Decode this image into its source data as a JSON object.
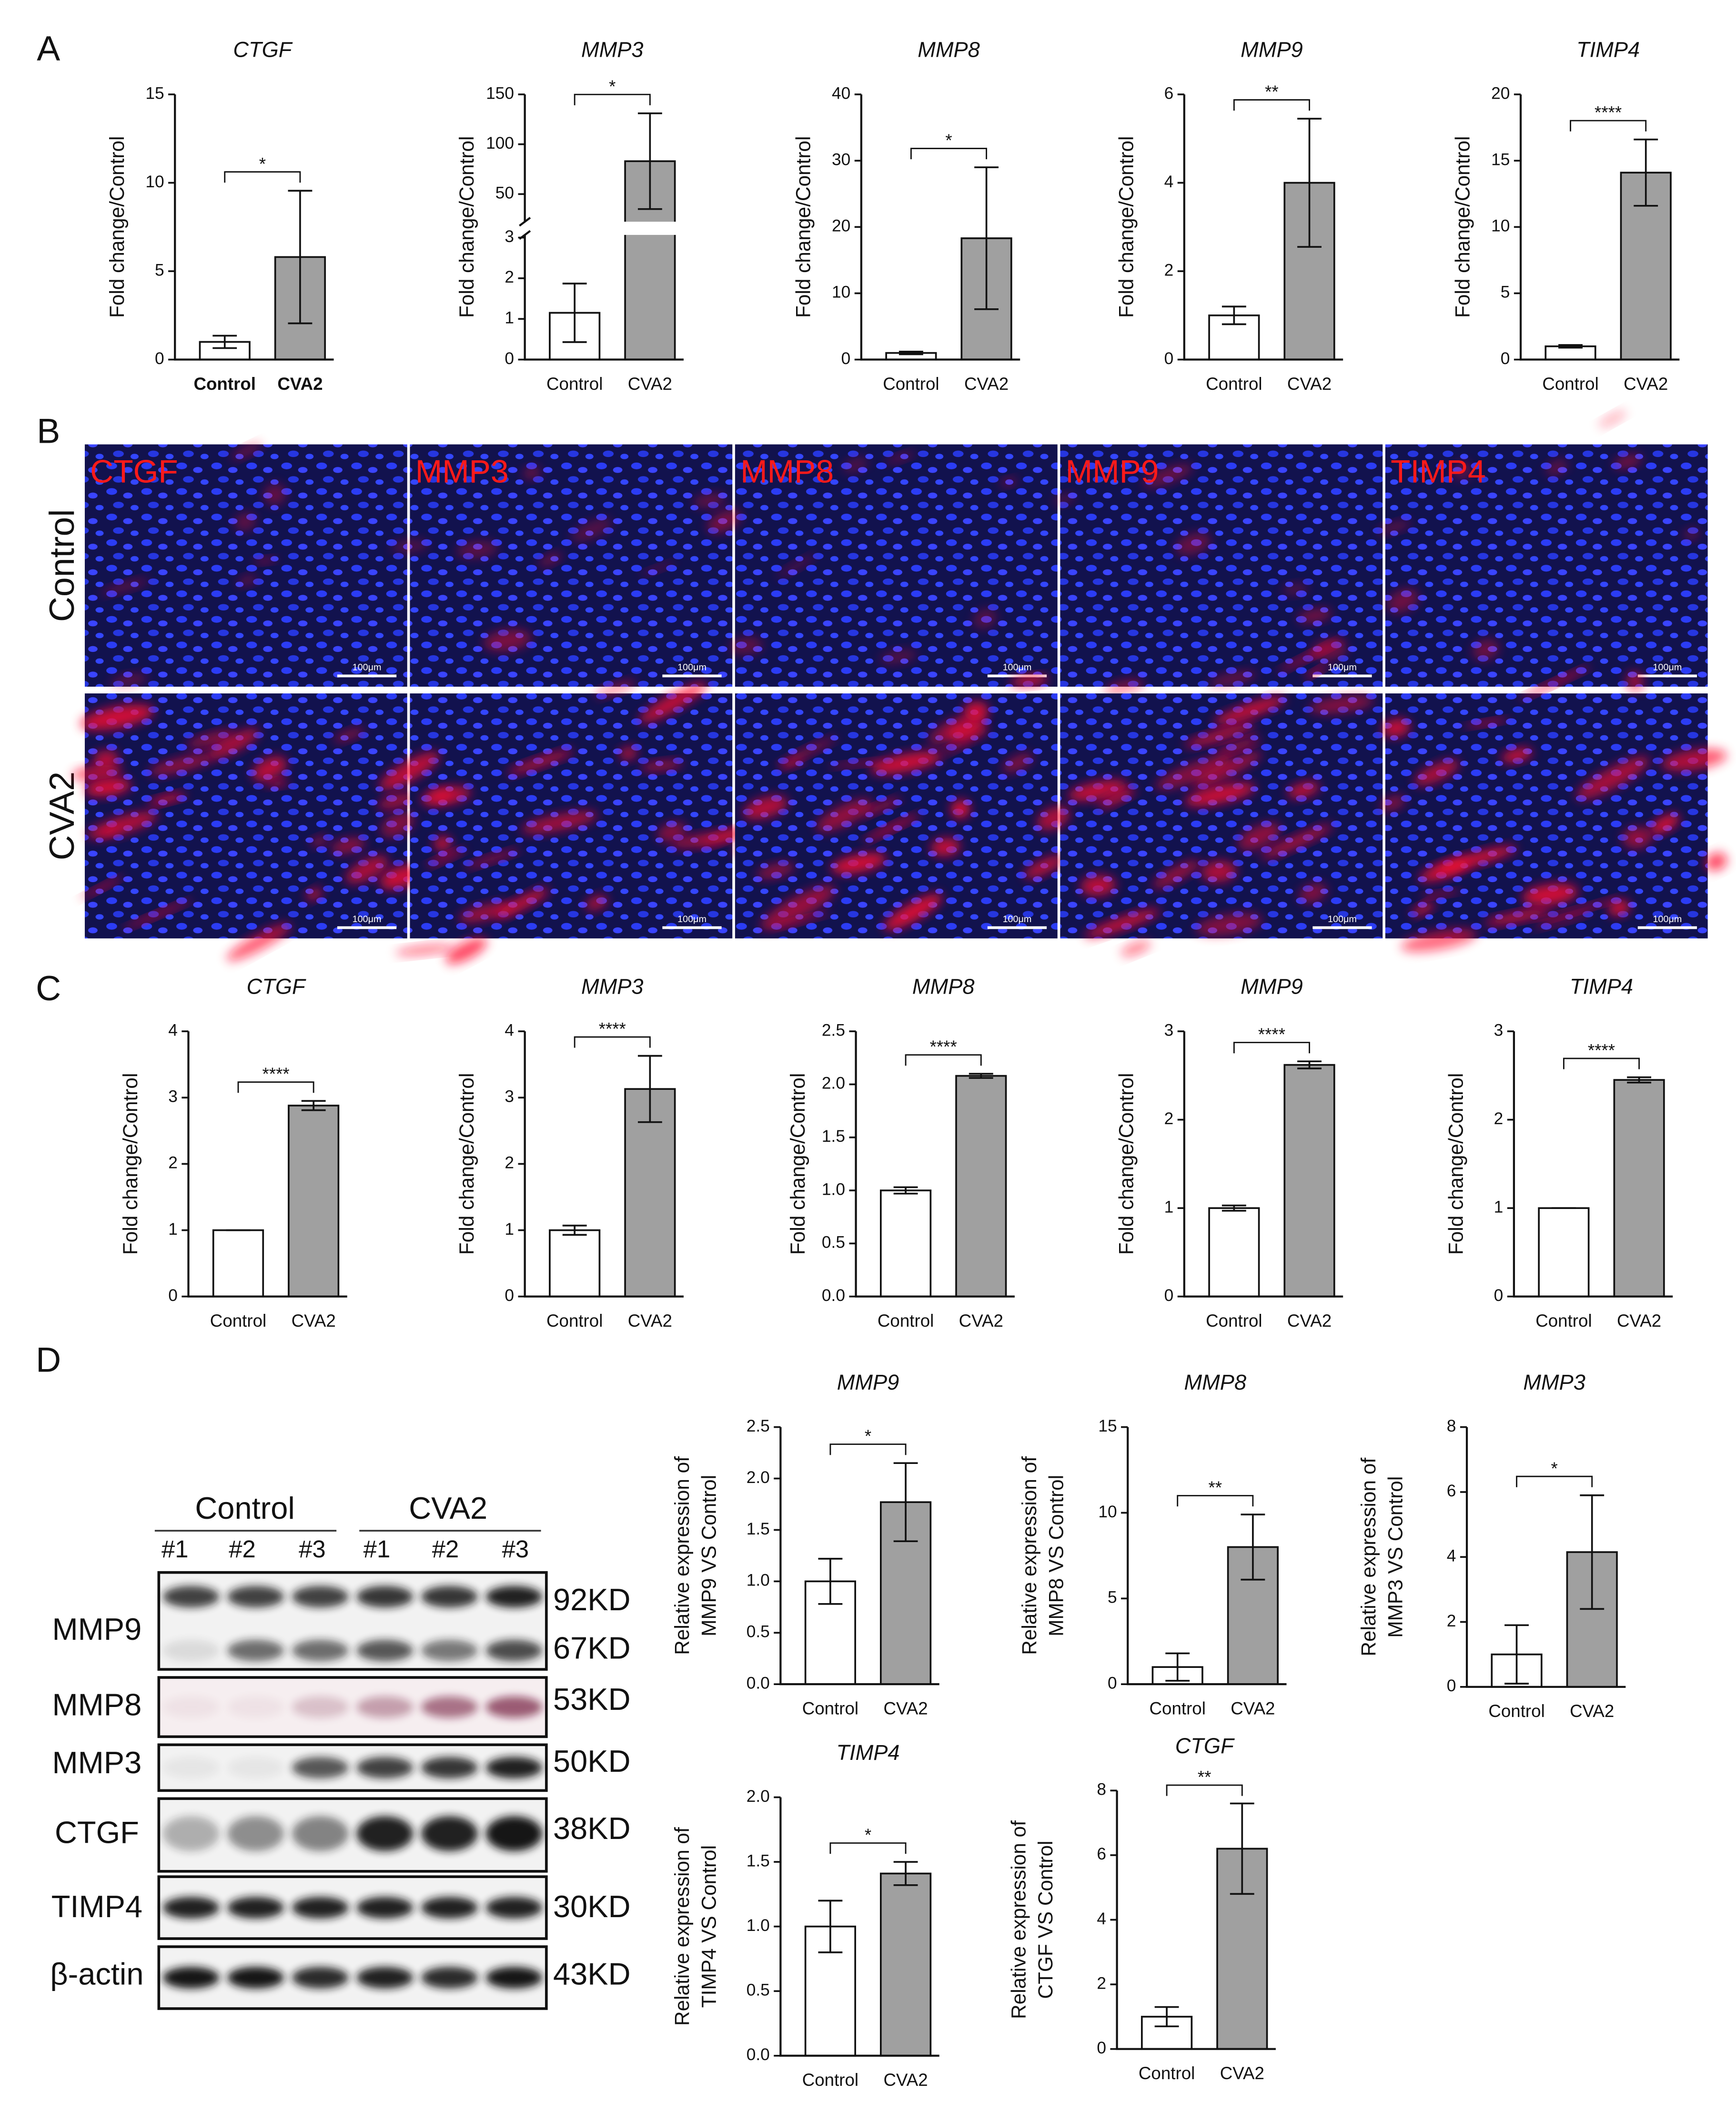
{
  "panel_labels": [
    "A",
    "B",
    "C",
    "D"
  ],
  "chart_data": [
    {
      "type": "bar",
      "title": "CTGF",
      "ylabel": "Fold change/Control",
      "categories": [
        "Control",
        "CVA2"
      ],
      "colors": [
        "#ffffff",
        "#a0a0a0"
      ],
      "values": [
        1,
        5.8
      ],
      "errors": [
        0.35,
        3.75
      ],
      "ylim": [
        0,
        15
      ],
      "yticks": [
        0,
        5,
        10,
        15
      ],
      "significance": "*"
    },
    {
      "type": "bar",
      "title": "MMP3",
      "ylabel": "Fold change/Control",
      "categories": [
        "Control",
        "CVA2"
      ],
      "colors": [
        "#ffffff",
        "#a0a0a0"
      ],
      "values": [
        1.15,
        83
      ],
      "errors": [
        0.72,
        48
      ],
      "ylim": [
        0,
        150
      ],
      "yticks": [
        0,
        1,
        2,
        3,
        50,
        100,
        150
      ],
      "ybreak": [
        3,
        25
      ],
      "significance": "*"
    },
    {
      "type": "bar",
      "title": "MMP8",
      "ylabel": "Fold change/Control",
      "categories": [
        "Control",
        "CVA2"
      ],
      "colors": [
        "#ffffff",
        "#a0a0a0"
      ],
      "values": [
        1,
        18.3
      ],
      "errors": [
        0.2,
        10.7
      ],
      "ylim": [
        0,
        40
      ],
      "yticks": [
        0,
        10,
        20,
        30,
        40
      ],
      "significance": "*"
    },
    {
      "type": "bar",
      "title": "MMP9",
      "ylabel": "Fold change/Control",
      "categories": [
        "Control",
        "CVA2"
      ],
      "colors": [
        "#ffffff",
        "#a0a0a0"
      ],
      "values": [
        1,
        4
      ],
      "errors": [
        0.2,
        1.45
      ],
      "ylim": [
        0,
        6
      ],
      "yticks": [
        0,
        2,
        4,
        6
      ],
      "significance": "**"
    },
    {
      "type": "bar",
      "title": "TIMP4",
      "ylabel": "Fold change/Control",
      "categories": [
        "Control",
        "CVA2"
      ],
      "colors": [
        "#ffffff",
        "#a0a0a0"
      ],
      "values": [
        1,
        14.1
      ],
      "errors": [
        0.1,
        2.5
      ],
      "ylim": [
        0,
        20
      ],
      "yticks": [
        0,
        5,
        10,
        15,
        20
      ],
      "significance": "****"
    },
    {
      "type": "bar",
      "title": "CTGF",
      "ylabel": "Fold change/Control",
      "categories": [
        "Control",
        "CVA2"
      ],
      "colors": [
        "#ffffff",
        "#a0a0a0"
      ],
      "values": [
        1,
        2.88
      ],
      "errors": [
        0,
        0.07
      ],
      "ylim": [
        0,
        4
      ],
      "yticks": [
        0,
        1,
        2,
        3,
        4
      ],
      "significance": "****"
    },
    {
      "type": "bar",
      "title": "MMP3",
      "ylabel": "Fold change/Control",
      "categories": [
        "Control",
        "CVA2"
      ],
      "colors": [
        "#ffffff",
        "#a0a0a0"
      ],
      "values": [
        1,
        3.13
      ],
      "errors": [
        0.07,
        0.5
      ],
      "ylim": [
        0,
        4
      ],
      "yticks": [
        0,
        1,
        2,
        3,
        4
      ],
      "significance": "****"
    },
    {
      "type": "bar",
      "title": "MMP8",
      "ylabel": "Fold change/Control",
      "categories": [
        "Control",
        "CVA2"
      ],
      "colors": [
        "#ffffff",
        "#a0a0a0"
      ],
      "values": [
        1,
        2.08
      ],
      "errors": [
        0.03,
        0.02
      ],
      "ylim": [
        0,
        2.5
      ],
      "yticks": [
        {
          "value": 0,
          "label": "0.0"
        },
        0.5,
        {
          "value": 1,
          "label": "1.0"
        },
        1.5,
        {
          "value": 2,
          "label": "2.0"
        },
        2.5
      ],
      "significance": "****"
    },
    {
      "type": "bar",
      "title": "MMP9",
      "ylabel": "Fold change/Control",
      "categories": [
        "Control",
        "CVA2"
      ],
      "colors": [
        "#ffffff",
        "#a0a0a0"
      ],
      "values": [
        1,
        2.62
      ],
      "errors": [
        0.03,
        0.04
      ],
      "ylim": [
        0,
        3
      ],
      "yticks": [
        0,
        1,
        2,
        3
      ],
      "significance": "****"
    },
    {
      "type": "bar",
      "title": "TIMP4",
      "ylabel": "Fold change/Control",
      "categories": [
        "Control",
        "CVA2"
      ],
      "colors": [
        "#ffffff",
        "#a0a0a0"
      ],
      "values": [
        1,
        2.45
      ],
      "errors": [
        0,
        0.03
      ],
      "ylim": [
        0,
        3
      ],
      "yticks": [
        0,
        1,
        2,
        3
      ],
      "significance": "****"
    },
    {
      "type": "bar",
      "title": "MMP9",
      "ylabel": [
        "Relative expression of",
        "MMP9 VS Control"
      ],
      "categories": [
        "Control",
        "CVA2"
      ],
      "colors": [
        "#ffffff",
        "#a0a0a0"
      ],
      "values": [
        1,
        1.77
      ],
      "errors": [
        0.22,
        0.38
      ],
      "ylim": [
        0,
        2.5
      ],
      "yticks": [
        {
          "value": 0,
          "label": "0.0"
        },
        0.5,
        {
          "value": 1,
          "label": "1.0"
        },
        1.5,
        {
          "value": 2,
          "label": "2.0"
        },
        2.5
      ],
      "significance": "*"
    },
    {
      "type": "bar",
      "title": "MMP8",
      "ylabel": [
        "Relative expression of",
        "MMP8 VS Control"
      ],
      "categories": [
        "Control",
        "CVA2"
      ],
      "colors": [
        "#ffffff",
        "#a0a0a0"
      ],
      "values": [
        1,
        8
      ],
      "errors": [
        0.8,
        1.9
      ],
      "ylim": [
        0,
        15
      ],
      "yticks": [
        0,
        5,
        10,
        15
      ],
      "significance": "**"
    },
    {
      "type": "bar",
      "title": "MMP3",
      "ylabel": [
        "Relative expression of",
        "MMP3 VS Control"
      ],
      "categories": [
        "Control",
        "CVA2"
      ],
      "colors": [
        "#ffffff",
        "#a0a0a0"
      ],
      "values": [
        1,
        4.15
      ],
      "errors": [
        0.9,
        1.75
      ],
      "ylim": [
        0,
        8
      ],
      "yticks": [
        0,
        2,
        4,
        6,
        8
      ],
      "significance": "*"
    },
    {
      "type": "bar",
      "title": "TIMP4",
      "ylabel": [
        "Relative expression of",
        "TIMP4 VS Control"
      ],
      "categories": [
        "Control",
        "CVA2"
      ],
      "colors": [
        "#ffffff",
        "#a0a0a0"
      ],
      "values": [
        1,
        1.41
      ],
      "errors": [
        0.2,
        0.09
      ],
      "ylim": [
        0,
        2
      ],
      "yticks": [
        {
          "value": 0,
          "label": "0.0"
        },
        0.5,
        {
          "value": 1,
          "label": "1.0"
        },
        1.5,
        {
          "value": 2,
          "label": "2.0"
        }
      ],
      "significance": "*"
    },
    {
      "type": "bar",
      "title": "CTGF",
      "ylabel": [
        "Relative expression of",
        "CTGF VS Control"
      ],
      "categories": [
        "Control",
        "CVA2"
      ],
      "colors": [
        "#ffffff",
        "#a0a0a0"
      ],
      "values": [
        1,
        6.2
      ],
      "errors": [
        0.3,
        1.4
      ],
      "ylim": [
        0,
        8
      ],
      "yticks": [
        0,
        2,
        4,
        6,
        8
      ],
      "significance": "**"
    }
  ],
  "immunofluorescence": {
    "stains": [
      "CTGF",
      "MMP3",
      "MMP8",
      "MMP9",
      "TIMP4"
    ],
    "groups": [
      "Control",
      "CVA2"
    ],
    "scale_bar": "100μm"
  },
  "western_blot": {
    "groups": [
      "Control",
      "CVA2"
    ],
    "lanes": [
      "#1",
      "#2",
      "#3",
      "#1",
      "#2",
      "#3"
    ],
    "rows": [
      {
        "protein": "MMP9",
        "sizes": [
          "92KD",
          "67KD"
        ]
      },
      {
        "protein": "MMP8",
        "sizes": [
          "53KD"
        ]
      },
      {
        "protein": "MMP3",
        "sizes": [
          "50KD"
        ]
      },
      {
        "protein": "CTGF",
        "sizes": [
          "38KD"
        ]
      },
      {
        "protein": "TIMP4",
        "sizes": [
          "30KD"
        ]
      },
      {
        "protein": "β-actin",
        "sizes": [
          "43KD"
        ]
      }
    ]
  }
}
